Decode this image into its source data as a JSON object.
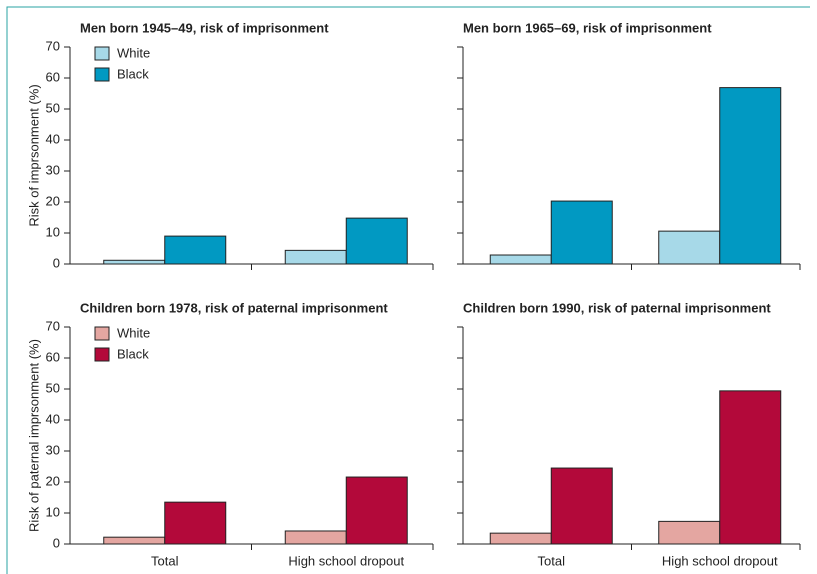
{
  "chart_data": [
    {
      "type": "bar",
      "title": "Men born 1945–49, risk of imprisonment",
      "y_label": "Risk of imprsonment (%)",
      "categories": [
        null,
        null
      ],
      "series": [
        {
          "name": "White",
          "color": "#a7d9e8",
          "values": [
            1.2,
            4.4
          ]
        },
        {
          "name": "Black",
          "color": "#0199c2",
          "values": [
            9,
            14.8
          ]
        }
      ],
      "ylim": [
        0,
        70
      ],
      "yticks": [
        0,
        10,
        20,
        30,
        40,
        50,
        60,
        70
      ],
      "legend": "top-left"
    },
    {
      "type": "bar",
      "title": "Men born 1965–69, risk of imprisonment",
      "categories": [
        null,
        null
      ],
      "series": [
        {
          "color": "#a7d9e8",
          "values": [
            2.9,
            10.6
          ]
        },
        {
          "color": "#0199c2",
          "values": [
            20.3,
            56.9
          ]
        }
      ],
      "ylim": [
        0,
        70
      ],
      "yticks": [
        0,
        10,
        20,
        30,
        40,
        50,
        60,
        70
      ],
      "ytick_labels": false
    },
    {
      "type": "bar",
      "title": "Children born 1978, risk of paternal imprisonment",
      "y_label": "Risk of paternal imprsonment (%)",
      "categories": [
        "Total",
        "High school dropout"
      ],
      "series": [
        {
          "name": "White",
          "color": "#e4a6a1",
          "values": [
            2.2,
            4.2
          ]
        },
        {
          "name": "Black",
          "color": "#b3093a",
          "values": [
            13.5,
            21.6
          ]
        }
      ],
      "ylim": [
        0,
        70
      ],
      "yticks": [
        0,
        10,
        20,
        30,
        40,
        50,
        60,
        70
      ],
      "legend": "top-left"
    },
    {
      "type": "bar",
      "title": "Children born 1990, risk of paternal imprisonment",
      "categories": [
        "Total",
        "High school dropout"
      ],
      "series": [
        {
          "color": "#e4a6a1",
          "values": [
            3.5,
            7.3
          ]
        },
        {
          "color": "#b3093a",
          "values": [
            24.5,
            49.4
          ]
        }
      ],
      "ylim": [
        0,
        70
      ],
      "yticks": [
        0,
        10,
        20,
        30,
        40,
        50,
        60,
        70
      ],
      "ytick_labels": false
    }
  ]
}
